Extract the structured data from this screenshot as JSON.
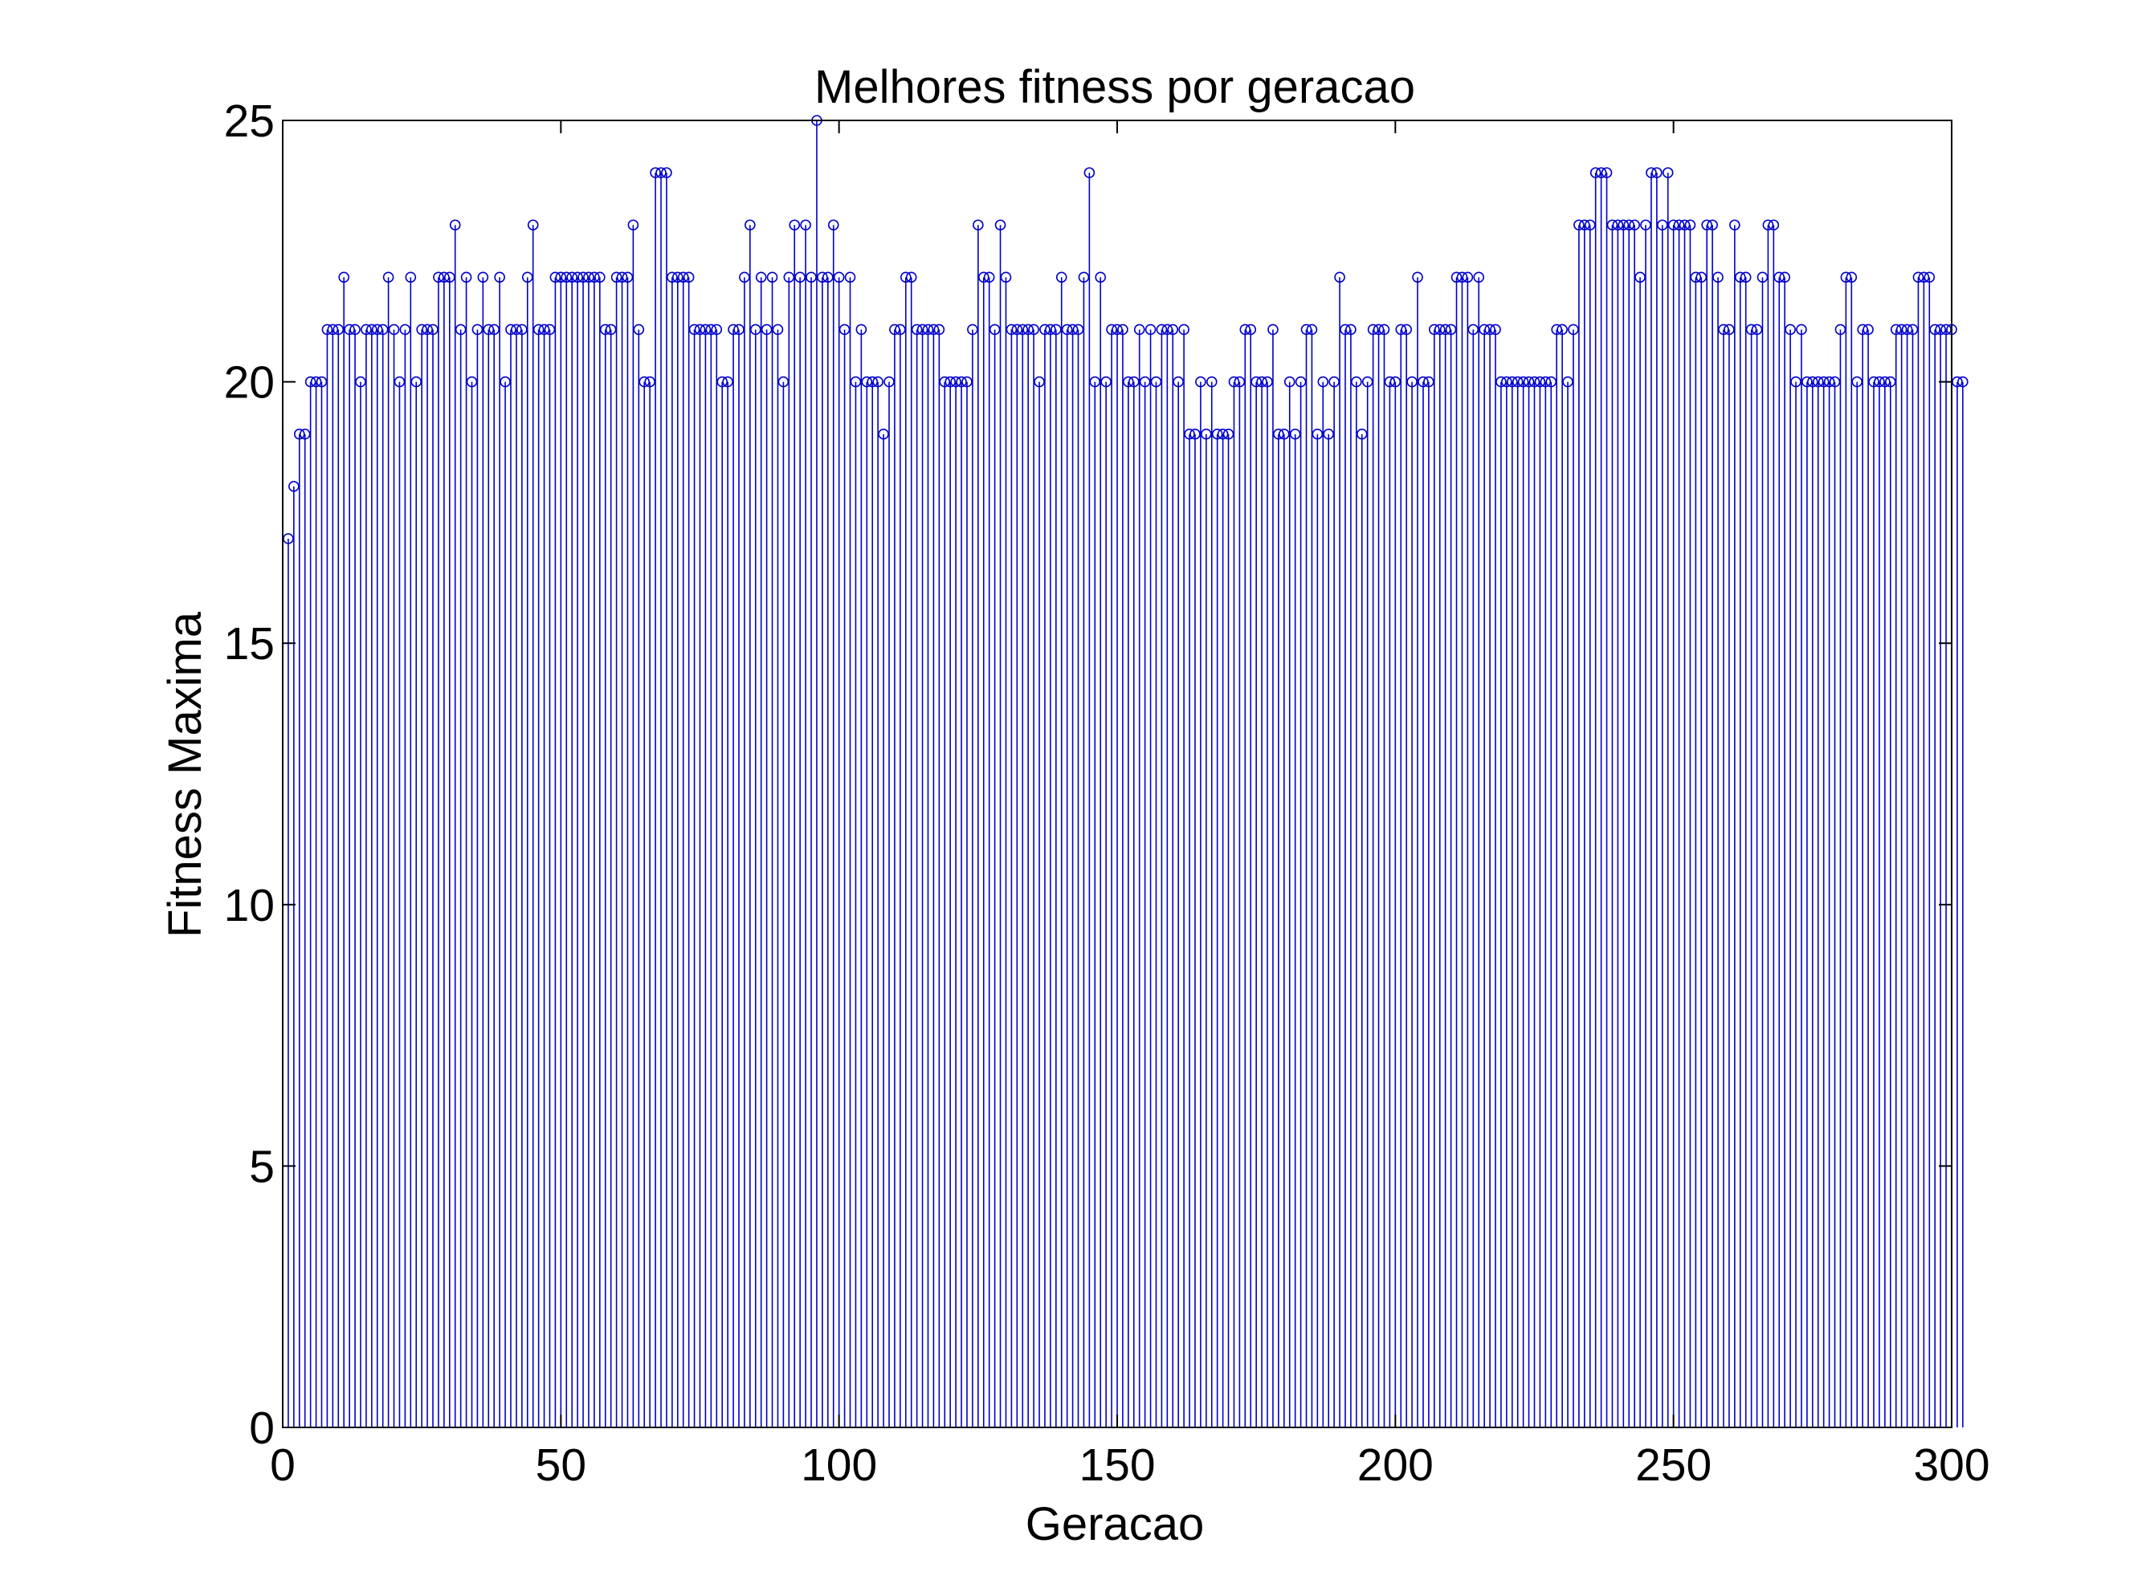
{
  "chart_data": {
    "type": "stem",
    "title": "Melhores fitness por geracao",
    "xlabel": "Geracao",
    "ylabel": "Fitness Maxima",
    "xlim": [
      0,
      300
    ],
    "ylim": [
      0,
      25
    ],
    "xticks": [
      0,
      50,
      100,
      150,
      200,
      250,
      300
    ],
    "yticks": [
      0,
      5,
      10,
      15,
      20,
      25
    ],
    "grid": false,
    "series": [
      {
        "color": "#0000cc",
        "values": [
          17,
          18,
          19,
          19,
          20,
          20,
          20,
          21,
          21,
          21,
          22,
          21,
          21,
          20,
          21,
          21,
          21,
          21,
          22,
          21,
          20,
          21,
          22,
          20,
          21,
          21,
          21,
          22,
          22,
          22,
          23,
          21,
          22,
          20,
          21,
          22,
          21,
          21,
          22,
          20,
          21,
          21,
          21,
          22,
          23,
          21,
          21,
          21,
          22,
          22,
          22,
          22,
          22,
          22,
          22,
          22,
          22,
          21,
          21,
          22,
          22,
          22,
          23,
          21,
          20,
          20,
          24,
          24,
          24,
          22,
          22,
          22,
          22,
          21,
          21,
          21,
          21,
          21,
          20,
          20,
          21,
          21,
          22,
          23,
          21,
          22,
          21,
          22,
          21,
          20,
          22,
          23,
          22,
          23,
          22,
          25,
          22,
          22,
          23,
          22,
          21,
          22,
          20,
          21,
          20,
          20,
          20,
          19,
          20,
          21,
          21,
          22,
          22,
          21,
          21,
          21,
          21,
          21,
          20,
          20,
          20,
          20,
          20,
          21,
          23,
          22,
          22,
          21,
          23,
          22,
          21,
          21,
          21,
          21,
          21,
          20,
          21,
          21,
          21,
          22,
          21,
          21,
          21,
          22,
          24,
          20,
          22,
          20,
          21,
          21,
          21,
          20,
          20,
          21,
          20,
          21,
          20,
          21,
          21,
          21,
          20,
          21,
          19,
          19,
          20,
          19,
          20,
          19,
          19,
          19,
          20,
          20,
          21,
          21,
          20,
          20,
          20,
          21,
          19,
          19,
          20,
          19,
          20,
          21,
          21,
          19,
          20,
          19,
          20,
          22,
          21,
          21,
          20,
          19,
          20,
          21,
          21,
          21,
          20,
          20,
          21,
          21,
          20,
          22,
          20,
          20,
          21,
          21,
          21,
          21,
          22,
          22,
          22,
          21,
          22,
          21,
          21,
          21,
          20,
          20,
          20,
          20,
          20,
          20,
          20,
          20,
          20,
          20,
          21,
          21,
          20,
          21,
          23,
          23,
          23,
          24,
          24,
          24,
          23,
          23,
          23,
          23,
          23,
          22,
          23,
          24,
          24,
          23,
          24,
          23,
          23,
          23,
          23,
          22,
          22,
          23,
          23,
          22,
          21,
          21,
          23,
          22,
          22,
          21,
          21,
          22,
          23,
          23,
          22,
          22,
          21,
          20,
          21,
          20,
          20,
          20,
          20,
          20,
          20,
          21,
          22,
          22,
          20,
          21,
          21,
          20,
          20,
          20,
          20,
          21,
          21,
          21,
          21,
          22,
          22,
          22,
          21,
          21,
          21,
          21,
          20,
          20
        ]
      }
    ]
  }
}
